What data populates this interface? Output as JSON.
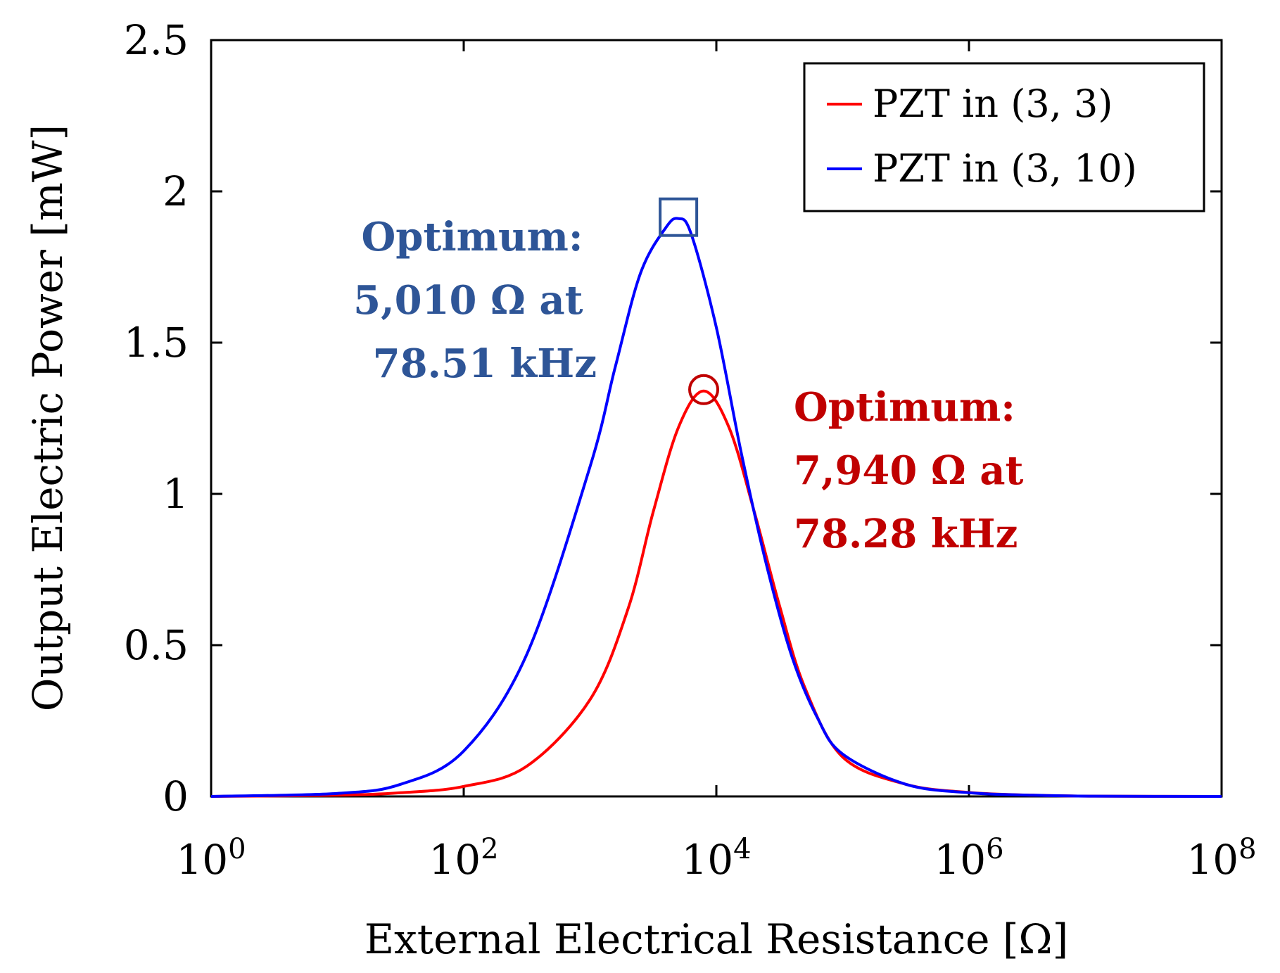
{
  "chart_data": {
    "type": "line",
    "xscale": "log",
    "xlabel": "External Electrical Resistance [Ω]",
    "ylabel": "Output Electric Power [mW]",
    "xlim": [
      1,
      100000000
    ],
    "ylim": [
      0,
      2.5
    ],
    "x_ticks": [
      {
        "value": 1,
        "base": "10",
        "exp": "0"
      },
      {
        "value": 100,
        "base": "10",
        "exp": "2"
      },
      {
        "value": 10000,
        "base": "10",
        "exp": "4"
      },
      {
        "value": 1000000,
        "base": "10",
        "exp": "6"
      },
      {
        "value": 100000000,
        "base": "10",
        "exp": "8"
      }
    ],
    "y_ticks": [
      {
        "value": 0,
        "label": "0"
      },
      {
        "value": 0.5,
        "label": "0.5"
      },
      {
        "value": 1,
        "label": "1"
      },
      {
        "value": 1.5,
        "label": "1.5"
      },
      {
        "value": 2,
        "label": "2"
      },
      {
        "value": 2.5,
        "label": "2.5"
      }
    ],
    "legend_position": "top-right",
    "series": [
      {
        "name": "PZT in (3, 3)",
        "color": "#ff0000",
        "peak_x": 7940,
        "peak_y": 1.34,
        "marker": "circle",
        "x": [
          1,
          10,
          31.6,
          100,
          316,
          1000,
          2000,
          3162,
          5012,
          7940,
          12589,
          20000,
          31623,
          50119,
          100000,
          316228,
          1000000,
          3162278,
          10000000,
          100000000
        ],
        "values": [
          0.0,
          0.004,
          0.012,
          0.033,
          0.1,
          0.32,
          0.62,
          0.94,
          1.22,
          1.34,
          1.22,
          0.94,
          0.63,
          0.36,
          0.13,
          0.04,
          0.013,
          0.004,
          0.001,
          0.0
        ]
      },
      {
        "name": "PZT in (3, 10)",
        "color": "#0000ff",
        "peak_x": 5010,
        "peak_y": 1.91,
        "marker": "square",
        "x": [
          1,
          10,
          31.6,
          100,
          316,
          1000,
          1585,
          2512,
          3981,
          5010,
          6310,
          10000,
          15849,
          25119,
          39811,
          63096,
          100000,
          316228,
          1000000,
          3162278,
          10000000,
          100000000
        ],
        "values": [
          0.0,
          0.01,
          0.04,
          0.15,
          0.47,
          1.09,
          1.42,
          1.73,
          1.88,
          1.91,
          1.86,
          1.55,
          1.13,
          0.76,
          0.46,
          0.26,
          0.14,
          0.04,
          0.012,
          0.004,
          0.001,
          0.0
        ]
      }
    ],
    "annotations": [
      {
        "lines": [
          "Optimum:",
          "5,010 Ω at",
          "78.51 kHz"
        ],
        "color": "#2e5597"
      },
      {
        "lines": [
          "Optimum:",
          "7,940 Ω at",
          "78.28 kHz"
        ],
        "color": "#c00000"
      }
    ]
  }
}
